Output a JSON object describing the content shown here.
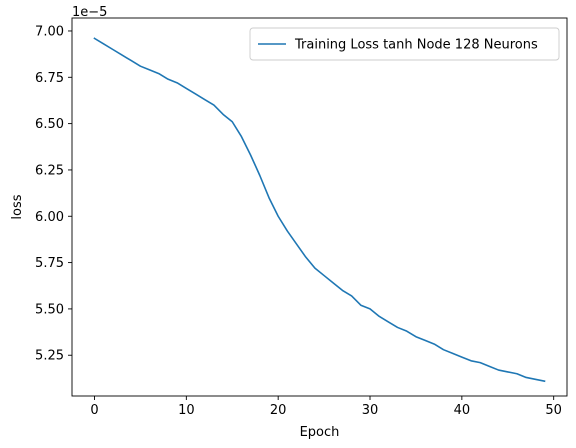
{
  "chart_data": {
    "type": "line",
    "title": "",
    "xlabel": "Epoch",
    "ylabel": "loss",
    "y_offset_label": "1e−5",
    "y_scale_factor": 1e-05,
    "xlim": [
      -2.45,
      51.45
    ],
    "ylim": [
      5.03,
      7.07
    ],
    "xticks": [
      0,
      10,
      20,
      30,
      40,
      50
    ],
    "xtick_labels": [
      "0",
      "10",
      "20",
      "30",
      "40",
      "50"
    ],
    "yticks": [
      5.25,
      5.5,
      5.75,
      6.0,
      6.25,
      6.5,
      6.75,
      7.0
    ],
    "ytick_labels": [
      "5.25",
      "5.50",
      "5.75",
      "6.00",
      "6.25",
      "6.50",
      "6.75",
      "7.00"
    ],
    "grid": false,
    "legend_position": "upper-right",
    "series": [
      {
        "name": "Training Loss tanh Node 128 Neurons",
        "color": "#1f77b4",
        "x": [
          0,
          1,
          2,
          3,
          4,
          5,
          6,
          7,
          8,
          9,
          10,
          11,
          12,
          13,
          14,
          15,
          16,
          17,
          18,
          19,
          20,
          21,
          22,
          23,
          24,
          25,
          26,
          27,
          28,
          29,
          30,
          31,
          32,
          33,
          34,
          35,
          36,
          37,
          38,
          39,
          40,
          41,
          42,
          43,
          44,
          45,
          46,
          47,
          48,
          49
        ],
        "values": [
          6.96,
          6.93,
          6.9,
          6.87,
          6.84,
          6.81,
          6.79,
          6.77,
          6.74,
          6.72,
          6.69,
          6.66,
          6.63,
          6.6,
          6.55,
          6.51,
          6.43,
          6.33,
          6.22,
          6.1,
          6.0,
          5.92,
          5.85,
          5.78,
          5.72,
          5.68,
          5.64,
          5.6,
          5.57,
          5.52,
          5.5,
          5.46,
          5.43,
          5.4,
          5.38,
          5.35,
          5.33,
          5.31,
          5.28,
          5.26,
          5.24,
          5.22,
          5.21,
          5.19,
          5.17,
          5.16,
          5.15,
          5.13,
          5.12,
          5.11
        ]
      }
    ]
  }
}
